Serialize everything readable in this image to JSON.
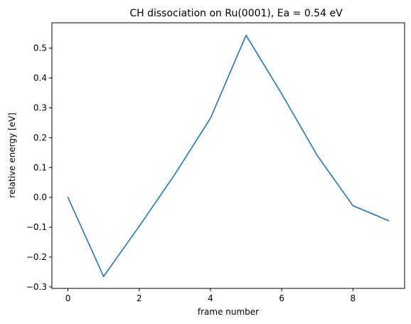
{
  "chart_data": {
    "type": "line",
    "title": "CH dissociation on Ru(0001), Ea = 0.54 eV",
    "xlabel": "frame number",
    "ylabel": "relative energy [eV]",
    "x": [
      0,
      1,
      2,
      3,
      4,
      5,
      6,
      7,
      8,
      9
    ],
    "series": [
      {
        "color": "#1f77b4",
        "values": [
          0.0,
          -0.265,
          -0.097,
          0.077,
          0.265,
          0.543,
          0.347,
          0.14,
          -0.028,
          -0.078
        ]
      }
    ],
    "xlim": [
      -0.45,
      9.45
    ],
    "ylim": [
      -0.305,
      0.585
    ],
    "xticks": [
      0,
      2,
      4,
      6,
      8
    ],
    "xtick_labels": [
      "0",
      "2",
      "4",
      "6",
      "8"
    ],
    "yticks": [
      -0.3,
      -0.2,
      -0.1,
      0.0,
      0.1,
      0.2,
      0.3,
      0.4,
      0.5
    ],
    "ytick_labels": [
      "−0.3",
      "−0.2",
      "−0.1",
      "0.0",
      "0.1",
      "0.2",
      "0.3",
      "0.4",
      "0.5"
    ],
    "grid": false,
    "legend": "none"
  }
}
